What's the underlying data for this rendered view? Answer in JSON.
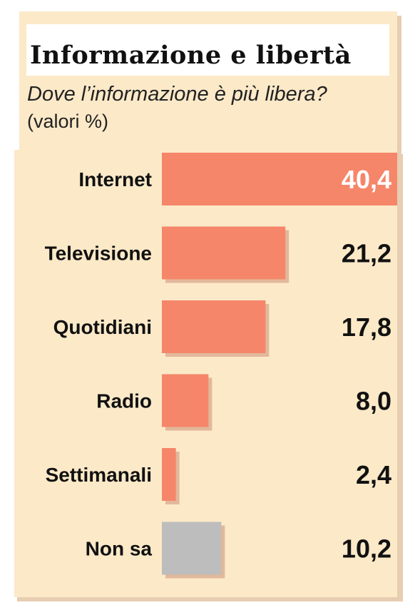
{
  "header": {
    "title": "Informazione e libertà",
    "subtitle": "Dove l’informazione è più libera?",
    "unit_note": "(valori %)"
  },
  "colors": {
    "background_panel": "#fce9c8",
    "shadow": "#e7cdb1",
    "bar_main": "#f5866a",
    "bar_neutral": "#bdbdbd",
    "bar_shadow": "#e2b89b"
  },
  "chart_data": {
    "type": "bar",
    "orientation": "horizontal",
    "title": "Informazione e libertà",
    "subtitle": "Dove l’informazione è più libera?",
    "unit": "(valori %)",
    "categories": [
      "Internet",
      "Televisione",
      "Quotidiani",
      "Radio",
      "Settimanali",
      "Non sa"
    ],
    "values": [
      40.4,
      21.2,
      17.8,
      8.0,
      2.4,
      10.2
    ],
    "value_labels": [
      "40,4",
      "21,2",
      "17,8",
      "8,0",
      "2,4",
      "10,2"
    ],
    "highlight_neutral": "Non sa",
    "xlim": [
      0,
      40.4
    ],
    "grid": false,
    "legend": "none"
  }
}
